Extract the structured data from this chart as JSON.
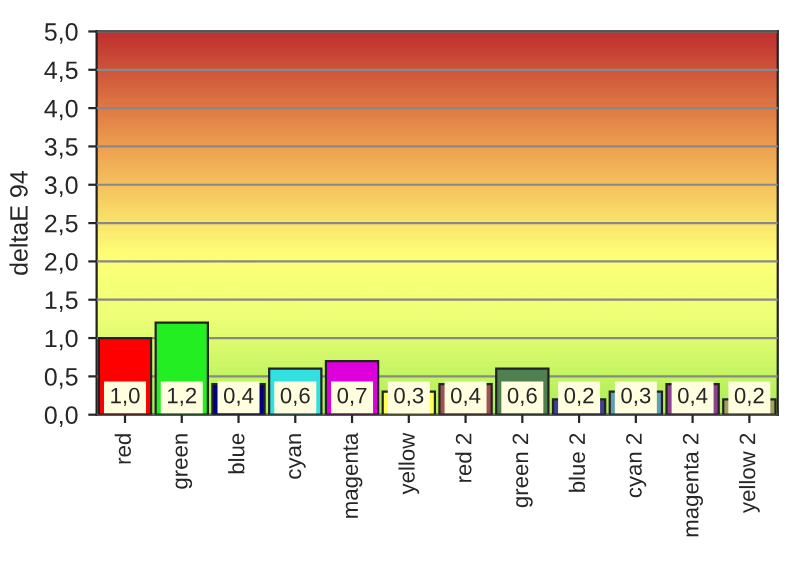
{
  "chart_data": {
    "type": "bar",
    "ylabel": "deltaE 94",
    "categories": [
      "red",
      "green",
      "blue",
      "cyan",
      "magenta",
      "yellow",
      "red 2",
      "green 2",
      "blue 2",
      "cyan 2",
      "magenta 2",
      "yellow 2"
    ],
    "values": [
      1.0,
      1.2,
      0.4,
      0.6,
      0.7,
      0.3,
      0.4,
      0.6,
      0.2,
      0.3,
      0.4,
      0.2
    ],
    "value_labels": [
      "1,0",
      "1,2",
      "0,4",
      "0,6",
      "0,7",
      "0,3",
      "0,4",
      "0,6",
      "0,2",
      "0,3",
      "0,4",
      "0,2"
    ],
    "colors": [
      "#ff0000",
      "#22ee22",
      "#000080",
      "#33e0e0",
      "#dd00dd",
      "#ffff55",
      "#a05050",
      "#508050",
      "#404090",
      "#60a0b0",
      "#904090",
      "#a0a060"
    ],
    "ylim": [
      0,
      5
    ],
    "yticks": [
      {
        "value": 0,
        "label": "0,0"
      },
      {
        "value": 0.5,
        "label": "0,5"
      },
      {
        "value": 1,
        "label": "1,0"
      },
      {
        "value": 1.5,
        "label": "1,5"
      },
      {
        "value": 2,
        "label": "2,0"
      },
      {
        "value": 2.5,
        "label": "2,5"
      },
      {
        "value": 3,
        "label": "3,0"
      },
      {
        "value": 3.5,
        "label": "3,5"
      },
      {
        "value": 4,
        "label": "4,0"
      },
      {
        "value": 4.5,
        "label": "4,5"
      },
      {
        "value": 5,
        "label": "5,0"
      }
    ],
    "grid": "y",
    "legend": false
  }
}
